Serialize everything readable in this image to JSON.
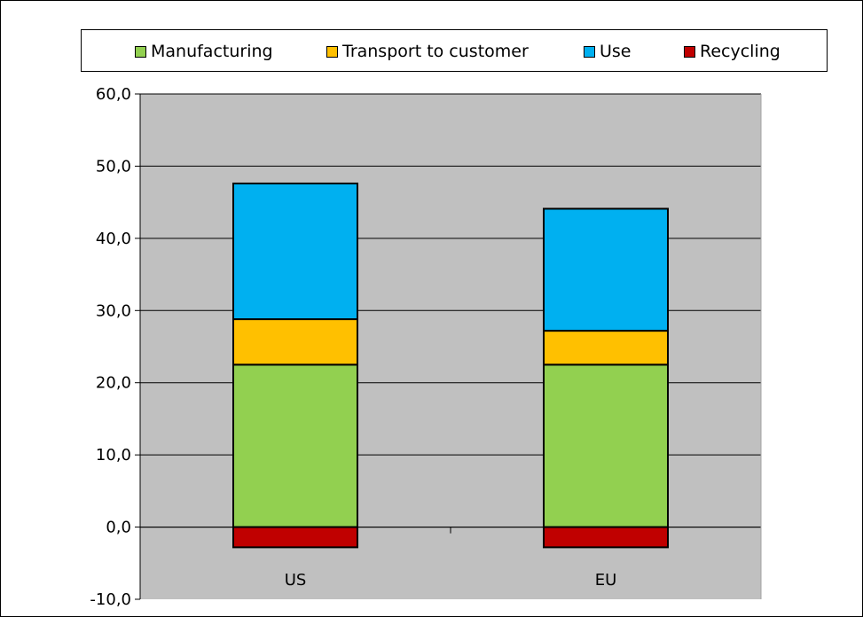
{
  "chart_data": {
    "type": "bar",
    "stacked": true,
    "categories": [
      "US",
      "EU"
    ],
    "series": [
      {
        "name": "Manufacturing",
        "color": "#92d050",
        "values": [
          22.5,
          22.5
        ]
      },
      {
        "name": "Transport to customer",
        "color": "#ffc000",
        "values": [
          6.3,
          4.7
        ]
      },
      {
        "name": "Use",
        "color": "#00b0f0",
        "values": [
          18.8,
          16.9
        ]
      },
      {
        "name": "Recycling",
        "color": "#c00000",
        "values": [
          -2.8,
          -2.8
        ]
      }
    ],
    "ylim": [
      -10,
      60
    ],
    "yticks": [
      "60,0",
      "50,0",
      "40,0",
      "30,0",
      "20,0",
      "10,0",
      "0,0",
      "-10,0"
    ],
    "ytick_values": [
      60,
      50,
      40,
      30,
      20,
      10,
      0,
      -10
    ],
    "title": "",
    "xlabel": "",
    "ylabel": "",
    "grid": true,
    "legend_position": "top",
    "plot_background": "#c0c0c0"
  }
}
